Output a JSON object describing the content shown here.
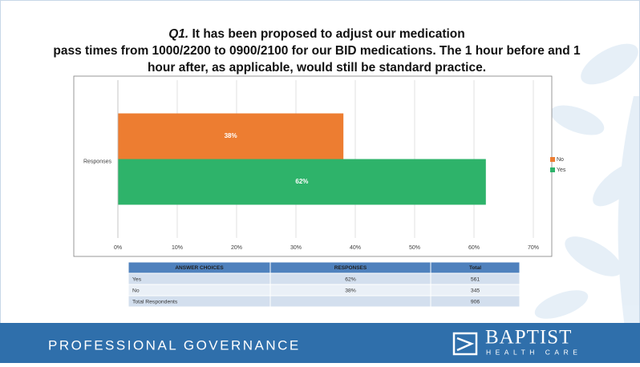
{
  "chart_data": {
    "type": "bar",
    "orientation": "horizontal",
    "title_label": "Q1.",
    "title": "It has been proposed to adjust our medication pass times from 1000/2200 to 0900/2100 for our BID medications. The 1 hour before and 1 hour after, as applicable, would still be standard practice.",
    "categories": [
      "Responses"
    ],
    "series": [
      {
        "name": "No",
        "color": "#ed7d31",
        "values": [
          38
        ],
        "value_labels": [
          "38%"
        ]
      },
      {
        "name": "Yes",
        "color": "#2eb36a",
        "values": [
          62
        ],
        "value_labels": [
          "62%"
        ]
      }
    ],
    "xlim": [
      0,
      70
    ],
    "xticks": [
      {
        "value": 0,
        "label": "0%"
      },
      {
        "value": 10,
        "label": "10%"
      },
      {
        "value": 20,
        "label": "20%"
      },
      {
        "value": 30,
        "label": "30%"
      },
      {
        "value": 40,
        "label": "40%"
      },
      {
        "value": 50,
        "label": "50%"
      },
      {
        "value": 60,
        "label": "60%"
      },
      {
        "value": 70,
        "label": "70%"
      }
    ],
    "grid": true,
    "legend": "right"
  },
  "table": {
    "headers": [
      "ANSWER CHOICES",
      "RESPONSES",
      "Total"
    ],
    "rows": [
      [
        "Yes",
        "62%",
        "561"
      ],
      [
        "No",
        "38%",
        "345"
      ],
      [
        "Total Respondents",
        null,
        "906"
      ]
    ]
  },
  "footer": {
    "section": "PROFESSIONAL GOVERNANCE",
    "logo_name": "BAPTIST",
    "logo_sub": "HEALTH CARE"
  }
}
